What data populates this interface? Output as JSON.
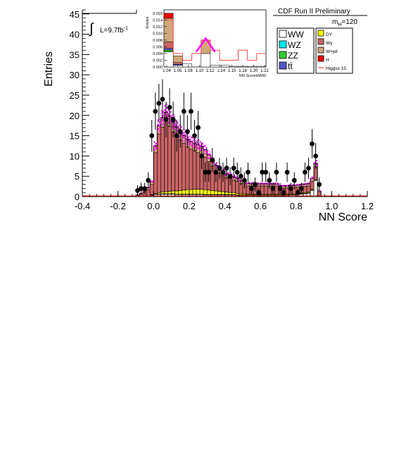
{
  "header": {
    "experiment": "CDF Run II Preliminary",
    "lumi_label": "L=9.7fb",
    "lumi_sup": "-1",
    "integral_symbol": "∫",
    "mass_prefix": "m",
    "mass_sub": "H",
    "mass_suffix": "=120"
  },
  "colors": {
    "WW": "#ffffff",
    "WZ": "#00e5ee",
    "ZZ": "#33cc33",
    "ttbar": "#5555cc",
    "DY": "#ffff00",
    "Wgamma": "#c96464",
    "Wjet": "#d2a87a",
    "H": "#ee0000",
    "signal_line": "#ff3333",
    "uncertainty": "#ff00ff",
    "data": "#000000"
  },
  "legend": {
    "left": [
      {
        "key": "WW",
        "label": "WW"
      },
      {
        "key": "WZ",
        "label": "WZ"
      },
      {
        "key": "ZZ",
        "label": "ZZ"
      },
      {
        "key": "ttbar",
        "label": "tt̄"
      }
    ],
    "right": [
      {
        "key": "DY",
        "label": "DY"
      },
      {
        "key": "Wgamma",
        "label": "Wγ"
      },
      {
        "key": "Wjet",
        "label": "W+jet"
      },
      {
        "key": "H",
        "label": "H"
      },
      {
        "key": "signal_line",
        "label": "Higgsx 15",
        "line": true
      }
    ]
  },
  "chart_data": [
    {
      "type": "bar",
      "xlabel": "NN Score",
      "ylabel": "Entries",
      "xlim": [
        -0.4,
        1.2
      ],
      "ylim": [
        0,
        46
      ],
      "x_ticks": [
        "-0.4",
        "-0.2",
        "0.0",
        "0.2",
        "0.4",
        "0.6",
        "0.8",
        "1.0",
        "1.2"
      ],
      "y_ticks": [
        "0",
        "5",
        "10",
        "15",
        "20",
        "25",
        "30",
        "35",
        "40",
        "45"
      ],
      "bin_width": 0.02,
      "bin_lows": [
        -0.1,
        -0.08,
        -0.06,
        -0.04,
        -0.02,
        0.0,
        0.02,
        0.04,
        0.06,
        0.08,
        0.1,
        0.12,
        0.14,
        0.16,
        0.18,
        0.2,
        0.22,
        0.24,
        0.26,
        0.28,
        0.3,
        0.32,
        0.34,
        0.36,
        0.38,
        0.4,
        0.42,
        0.44,
        0.46,
        0.48,
        0.5,
        0.52,
        0.54,
        0.56,
        0.58,
        0.6,
        0.62,
        0.64,
        0.66,
        0.68,
        0.7,
        0.72,
        0.74,
        0.76,
        0.78,
        0.8,
        0.82,
        0.84,
        0.86,
        0.88,
        0.9,
        0.92
      ],
      "stack": [
        {
          "key": "WW",
          "values": [
            0.1,
            0.1,
            0.1,
            0.2,
            0.3,
            0.5,
            0.5,
            0.6,
            0.6,
            0.6,
            0.6,
            0.5,
            0.5,
            0.5,
            0.5,
            0.5,
            0.5,
            0.5,
            0.5,
            0.4,
            0.4,
            0.4,
            0.4,
            0.4,
            0.4,
            0.4,
            0.4,
            0.4,
            0.3,
            0.3,
            0.3,
            0.3,
            0.3,
            0.3,
            0.3,
            0.3,
            0.3,
            0.3,
            0.3,
            0.3,
            0.3,
            0.3,
            0.3,
            0.4,
            0.4,
            0.5,
            0.6,
            0.7,
            0.8,
            1.5,
            4.0,
            0.3
          ]
        },
        {
          "key": "ZZ",
          "values": [
            0,
            0,
            0,
            0,
            0.1,
            0.1,
            0.1,
            0.1,
            0.1,
            0.1,
            0.1,
            0.1,
            0.1,
            0.1,
            0.1,
            0.1,
            0.1,
            0.1,
            0.1,
            0.1,
            0.1,
            0.1,
            0.1,
            0.1,
            0.1,
            0.1,
            0.1,
            0.1,
            0.1,
            0.1,
            0.1,
            0.1,
            0.1,
            0.1,
            0.1,
            0.1,
            0.1,
            0.1,
            0.1,
            0.1,
            0.1,
            0.1,
            0.1,
            0.1,
            0.1,
            0.1,
            0.1,
            0.1,
            0.1,
            0.1,
            0.1,
            0
          ]
        },
        {
          "key": "DY",
          "values": [
            0,
            0,
            0,
            0,
            0.1,
            0.2,
            0.3,
            0.4,
            0.5,
            0.6,
            0.7,
            0.8,
            0.9,
            1.0,
            1.1,
            1.1,
            1.2,
            1.2,
            1.2,
            1.2,
            1.1,
            1.0,
            0.9,
            0.8,
            0.7,
            0.6,
            0.5,
            0.5,
            0.4,
            0.3,
            0.3,
            0.2,
            0.2,
            0.2,
            0.2,
            0.2,
            0.2,
            0.2,
            0.2,
            0.2,
            0.2,
            0.2,
            0.2,
            0.2,
            0.2,
            0.2,
            0.2,
            0.2,
            0.2,
            0.2,
            0.2,
            0
          ]
        },
        {
          "key": "Wgamma",
          "values": [
            0.2,
            0.5,
            1.0,
            1.5,
            2.5,
            10.0,
            14.5,
            16.0,
            17.0,
            16.0,
            14.5,
            13.5,
            12.5,
            11.5,
            10.5,
            10.0,
            9.5,
            9.0,
            8.5,
            8.0,
            7.0,
            6.0,
            5.0,
            4.5,
            4.0,
            3.5,
            3.5,
            3.0,
            3.0,
            2.5,
            2.5,
            2.0,
            2.0,
            2.0,
            2.0,
            2.0,
            2.0,
            2.0,
            2.0,
            2.0,
            1.5,
            1.5,
            1.5,
            1.5,
            1.5,
            1.5,
            1.5,
            1.5,
            1.5,
            2.0,
            3.0,
            0.8
          ]
        },
        {
          "key": "Wjet",
          "values": [
            0.1,
            0.2,
            0.3,
            0.5,
            0.8,
            1.6,
            2.0,
            2.3,
            2.5,
            2.5,
            2.4,
            2.2,
            2.0,
            1.9,
            1.8,
            1.8,
            1.8,
            1.9,
            2.0,
            1.8,
            1.6,
            1.4,
            1.2,
            1.1,
            1.0,
            0.9,
            0.8,
            0.8,
            0.7,
            0.7,
            0.6,
            0.6,
            0.6,
            0.6,
            0.5,
            0.5,
            0.5,
            0.5,
            0.5,
            0.5,
            0.5,
            0.5,
            0.5,
            0.5,
            0.5,
            0.5,
            0.5,
            0.5,
            0.5,
            0.6,
            0.8,
            0.3
          ]
        },
        {
          "key": "H",
          "values": [
            0,
            0,
            0,
            0,
            0,
            0.1,
            0.1,
            0.1,
            0.1,
            0.1,
            0.1,
            0.1,
            0.1,
            0.1,
            0.1,
            0.1,
            0.1,
            0.1,
            0.1,
            0.1,
            0.1,
            0.1,
            0.1,
            0.1,
            0.1,
            0.1,
            0.1,
            0.1,
            0.1,
            0.1,
            0.1,
            0.1,
            0.1,
            0.1,
            0.1,
            0.1,
            0.1,
            0.1,
            0.1,
            0.1,
            0.1,
            0.1,
            0.1,
            0.1,
            0.1,
            0.1,
            0.1,
            0.1,
            0.1,
            0.1,
            0.1,
            0
          ]
        }
      ],
      "uncertainty_frac": 0.1,
      "data_points": [
        {
          "x": -0.09,
          "y": 1.5,
          "err": 1.3
        },
        {
          "x": -0.07,
          "y": 2.0,
          "err": 1.4
        },
        {
          "x": -0.05,
          "y": 2.0,
          "err": 1.4
        },
        {
          "x": -0.03,
          "y": 4.0,
          "err": 2.0
        },
        {
          "x": -0.01,
          "y": 15.0,
          "err": 3.9
        },
        {
          "x": 0.01,
          "y": 21.0,
          "err": 4.6
        },
        {
          "x": 0.03,
          "y": 23.0,
          "err": 4.8
        },
        {
          "x": 0.05,
          "y": 24.0,
          "err": 4.9
        },
        {
          "x": 0.07,
          "y": 19.0,
          "err": 4.4
        },
        {
          "x": 0.09,
          "y": 22.0,
          "err": 4.7
        },
        {
          "x": 0.11,
          "y": 19.0,
          "err": 4.4
        },
        {
          "x": 0.13,
          "y": 15.0,
          "err": 3.9
        },
        {
          "x": 0.15,
          "y": 16.0,
          "err": 4.0
        },
        {
          "x": 0.17,
          "y": 21.0,
          "err": 4.6
        },
        {
          "x": 0.19,
          "y": 16.0,
          "err": 4.0
        },
        {
          "x": 0.21,
          "y": 21.0,
          "err": 4.6
        },
        {
          "x": 0.23,
          "y": 15.0,
          "err": 3.9
        },
        {
          "x": 0.25,
          "y": 17.0,
          "err": 4.1
        },
        {
          "x": 0.27,
          "y": 10.0,
          "err": 3.2
        },
        {
          "x": 0.29,
          "y": 6.0,
          "err": 2.4
        },
        {
          "x": 0.31,
          "y": 6.0,
          "err": 2.4
        },
        {
          "x": 0.33,
          "y": 9.0,
          "err": 3.0
        },
        {
          "x": 0.35,
          "y": 6.0,
          "err": 2.4
        },
        {
          "x": 0.37,
          "y": 7.0,
          "err": 2.6
        },
        {
          "x": 0.39,
          "y": 6.0,
          "err": 2.4
        },
        {
          "x": 0.41,
          "y": 7.0,
          "err": 2.6
        },
        {
          "x": 0.43,
          "y": 5.0,
          "err": 2.2
        },
        {
          "x": 0.45,
          "y": 7.0,
          "err": 2.6
        },
        {
          "x": 0.47,
          "y": 6.0,
          "err": 2.4
        },
        {
          "x": 0.49,
          "y": 5.0,
          "err": 2.2
        },
        {
          "x": 0.51,
          "y": 4.0,
          "err": 2.0
        },
        {
          "x": 0.53,
          "y": 6.0,
          "err": 2.4
        },
        {
          "x": 0.55,
          "y": 2.0,
          "err": 1.4
        },
        {
          "x": 0.57,
          "y": 3.0,
          "err": 1.7
        },
        {
          "x": 0.59,
          "y": 1.0,
          "err": 1.0
        },
        {
          "x": 0.61,
          "y": 6.0,
          "err": 2.4
        },
        {
          "x": 0.63,
          "y": 6.0,
          "err": 2.4
        },
        {
          "x": 0.65,
          "y": 4.0,
          "err": 2.0
        },
        {
          "x": 0.67,
          "y": 2.0,
          "err": 1.4
        },
        {
          "x": 0.69,
          "y": 6.0,
          "err": 2.4
        },
        {
          "x": 0.71,
          "y": 2.0,
          "err": 1.4
        },
        {
          "x": 0.73,
          "y": 1.0,
          "err": 1.0
        },
        {
          "x": 0.75,
          "y": 6.0,
          "err": 2.4
        },
        {
          "x": 0.77,
          "y": 2.0,
          "err": 1.4
        },
        {
          "x": 0.79,
          "y": 4.0,
          "err": 2.0
        },
        {
          "x": 0.81,
          "y": 1.0,
          "err": 1.0
        },
        {
          "x": 0.83,
          "y": 2.0,
          "err": 1.4
        },
        {
          "x": 0.85,
          "y": 6.0,
          "err": 2.4
        },
        {
          "x": 0.87,
          "y": 7.0,
          "err": 2.6
        },
        {
          "x": 0.89,
          "y": 13.0,
          "err": 3.6
        },
        {
          "x": 0.91,
          "y": 10.0,
          "err": 3.2
        },
        {
          "x": 0.93,
          "y": 3.0,
          "err": 1.7
        }
      ]
    },
    {
      "type": "bar",
      "xlabel": "NN ScoreHWW",
      "ylabel": "Entries",
      "xlim": [
        1.0,
        1.22
      ],
      "ylim": [
        0,
        0.017
      ],
      "x_ticks": [
        "1.04",
        "1.05",
        "1.08",
        "1.10",
        "1.12",
        "1.14",
        "1.15",
        "1.18",
        "1.20",
        "1.22"
      ],
      "y_ticks": [
        "0.000",
        "0.002",
        "0.004",
        "0.006",
        "0.008",
        "0.010",
        "0.012",
        "0.014",
        "0.016"
      ],
      "bin_lows": [
        1.0,
        1.02,
        1.04,
        1.06,
        1.08,
        1.1,
        1.12,
        1.14,
        1.16,
        1.18,
        1.2
      ],
      "bin_width": 0.02,
      "stack": [
        {
          "key": "WW",
          "values": [
            0.0045,
            0.0005,
            0.001,
            0.0,
            0.004,
            0.0005,
            0.0005,
            0.0002,
            0.0002,
            0.0002,
            0.0002
          ]
        },
        {
          "key": "ZZ",
          "values": [
            0.0005,
            0.0,
            0.0,
            0.0,
            0.0,
            0.0,
            0.0,
            0.0,
            0.0,
            0.0,
            0.0
          ]
        },
        {
          "key": "ttbar",
          "values": [
            0.0005,
            0.0003,
            0.0,
            0.0,
            0.0,
            0.0,
            0.0,
            0.0,
            0.0,
            0.0,
            0.0
          ]
        },
        {
          "key": "Wgamma",
          "values": [
            0.002,
            0.0005,
            0.0,
            0.0,
            0.0,
            0.0,
            0.0,
            0.0,
            0.0,
            0.0,
            0.0
          ]
        },
        {
          "key": "Wjet",
          "values": [
            0.007,
            0.002,
            0.0,
            0.0,
            0.004,
            0.0,
            0.0,
            0.0,
            0.0,
            0.0,
            0.0
          ]
        },
        {
          "key": "H",
          "values": [
            0.0015,
            0.0,
            0.0,
            0.0,
            0.0,
            0.0,
            0.0,
            0.0,
            0.0,
            0.0,
            0.0
          ]
        }
      ],
      "signal_x15": [
        0.014,
        0.004,
        0.002,
        0.004,
        0.008,
        0.005,
        0.002,
        0.002,
        0.005,
        0.002,
        0.004
      ],
      "data_line": [
        {
          "x": 1.07,
          "y": 0.0045
        },
        {
          "x": 1.09,
          "y": 0.0085
        },
        {
          "x": 1.11,
          "y": 0.0045
        }
      ]
    }
  ]
}
